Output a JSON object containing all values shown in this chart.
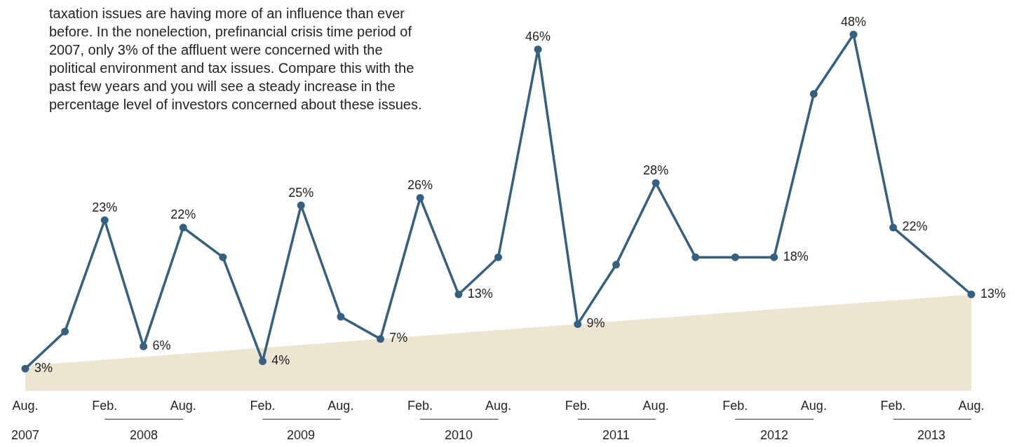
{
  "chart_data": {
    "type": "line",
    "annotations": [
      "taxation issues are having more of an influence than ever\nbefore. In the nonelection, prefinancial crisis time period of\n2007, only 3% of the affluent were concerned with the\npolitical environment and tax issues. Compare this with the\npast few years and you will see a steady increase in the\npercentage level of investors concerned about these issues."
    ],
    "series": [
      {
        "type": "area",
        "color": "#ece5d2",
        "x": [
          "2007-08",
          "2013-08"
        ],
        "values": [
          3.4,
          13
        ]
      },
      {
        "color": "#35607f",
        "marker": "circle",
        "x": [
          "2007-08",
          "2007-11",
          "2008-02",
          "2008-05",
          "2008-08",
          "2008-11",
          "2009-02",
          "2009-05",
          "2009-08",
          "2009-11",
          "2010-02",
          "2010-05",
          "2010-08",
          "2010-11",
          "2011-02",
          "2011-05",
          "2011-08",
          "2011-11",
          "2012-02",
          "2012-05",
          "2012-08",
          "2012-11",
          "2013-02",
          "2013-08"
        ],
        "values": [
          3,
          8,
          23,
          6,
          22,
          18,
          4,
          25,
          10,
          7,
          26,
          13,
          18,
          46,
          9,
          17,
          28,
          18,
          18,
          18,
          40,
          48,
          22,
          13
        ],
        "value_labels": [
          "3%",
          null,
          "23%",
          "6%",
          "22%",
          null,
          "4%",
          "25%",
          null,
          "7%",
          "26%",
          "13%",
          null,
          "46%",
          "9%",
          null,
          "28%",
          null,
          null,
          "18%",
          null,
          "48%",
          "22%",
          "13%"
        ]
      }
    ],
    "xlim": [
      "2007-08",
      "2013-08"
    ],
    "xticks": [
      {
        "value": "2007-08",
        "label": "Aug."
      },
      {
        "value": "2008-02",
        "label": "Feb."
      },
      {
        "value": "2008-08",
        "label": "Aug."
      },
      {
        "value": "2009-02",
        "label": "Feb."
      },
      {
        "value": "2009-08",
        "label": "Aug."
      },
      {
        "value": "2010-02",
        "label": "Feb."
      },
      {
        "value": "2010-08",
        "label": "Aug."
      },
      {
        "value": "2011-02",
        "label": "Feb."
      },
      {
        "value": "2011-08",
        "label": "Aug."
      },
      {
        "value": "2012-02",
        "label": "Feb."
      },
      {
        "value": "2012-08",
        "label": "Aug."
      },
      {
        "value": "2013-02",
        "label": "Feb."
      },
      {
        "value": "2013-08",
        "label": "Aug."
      }
    ],
    "x2ticks": [
      {
        "value": "2007-08",
        "label": "2007"
      },
      {
        "value": "2008-05",
        "label": "2008"
      },
      {
        "value": "2009-05",
        "label": "2009"
      },
      {
        "value": "2010-05",
        "label": "2010"
      },
      {
        "value": "2011-05",
        "label": "2011"
      },
      {
        "value": "2012-05",
        "label": "2012"
      },
      {
        "value": "2013-05",
        "label": "2013"
      }
    ],
    "x2lim": [
      "2007-08",
      "2013-05"
    ],
    "tick_labels": "x"
  }
}
